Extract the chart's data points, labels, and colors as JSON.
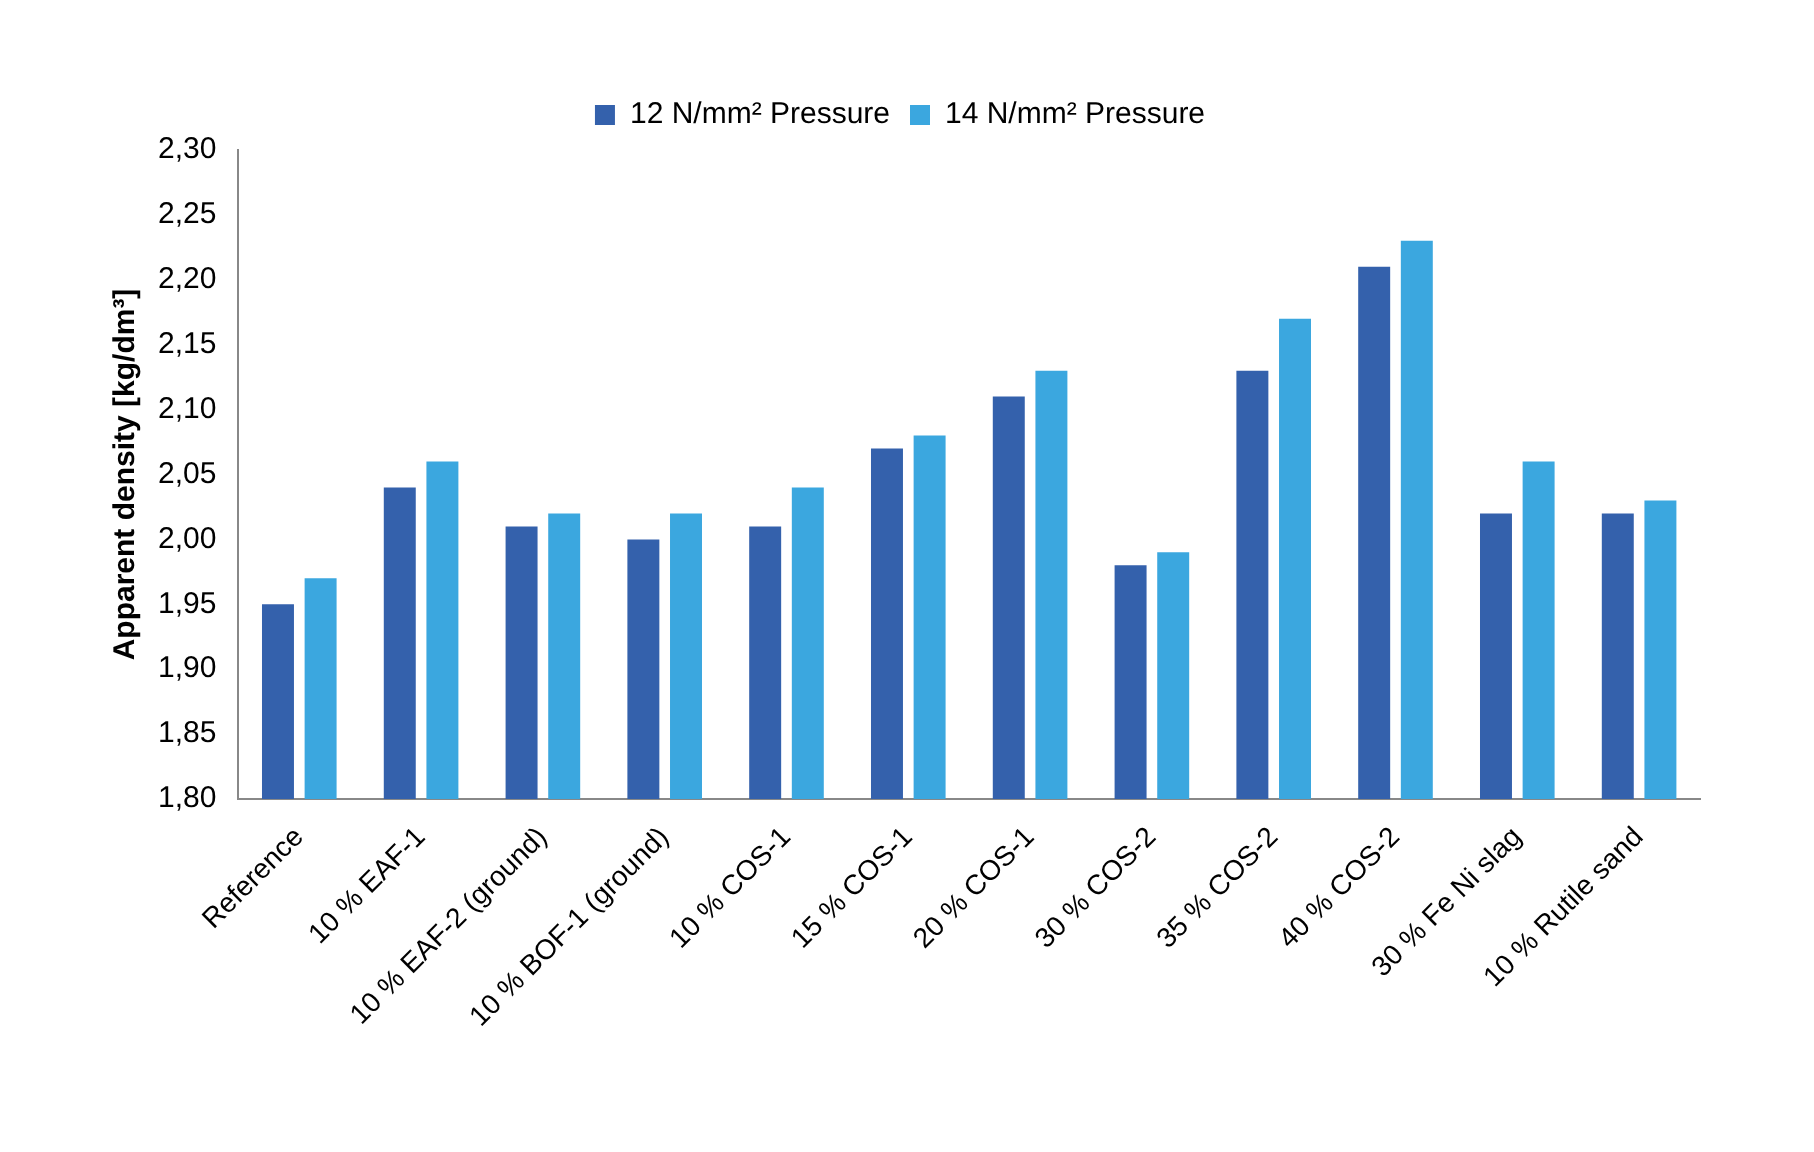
{
  "chart_data": {
    "type": "bar",
    "ylabel": "Apparent density [kg/dm³]",
    "categories": [
      "Reference",
      "10 % EAF-1",
      "10 % EAF-2 (ground)",
      "10 % BOF-1 (ground)",
      "10 % COS-1",
      "15 % COS-1",
      "20 % COS-1",
      "30 % COS-2",
      "35 % COS-2",
      "40 % COS-2",
      "30 % Fe Ni slag",
      "10 % Rutile sand"
    ],
    "series": [
      {
        "name": "12 N/mm² Pressure",
        "color": "#3461ac",
        "values": [
          1.95,
          2.04,
          2.01,
          2.0,
          2.01,
          2.07,
          2.11,
          1.98,
          2.13,
          2.21,
          2.02,
          2.02
        ]
      },
      {
        "name": "14 N/mm² Pressure",
        "color": "#3ba7df",
        "values": [
          1.97,
          2.06,
          2.02,
          2.02,
          2.04,
          2.08,
          2.13,
          1.99,
          2.17,
          2.23,
          2.06,
          2.03
        ]
      }
    ],
    "ylim": [
      1.8,
      2.3
    ],
    "yticks": [
      {
        "value": 1.8,
        "label": "1,80"
      },
      {
        "value": 1.85,
        "label": "1,85"
      },
      {
        "value": 1.9,
        "label": "1,90"
      },
      {
        "value": 1.95,
        "label": "1,95"
      },
      {
        "value": 2.0,
        "label": "2,00"
      },
      {
        "value": 2.05,
        "label": "2,05"
      },
      {
        "value": 2.1,
        "label": "2,10"
      },
      {
        "value": 2.15,
        "label": "2,15"
      },
      {
        "value": 2.2,
        "label": "2,20"
      },
      {
        "value": 2.25,
        "label": "2,25"
      },
      {
        "value": 2.3,
        "label": "2,30"
      }
    ],
    "grid": false,
    "legend": "top"
  }
}
